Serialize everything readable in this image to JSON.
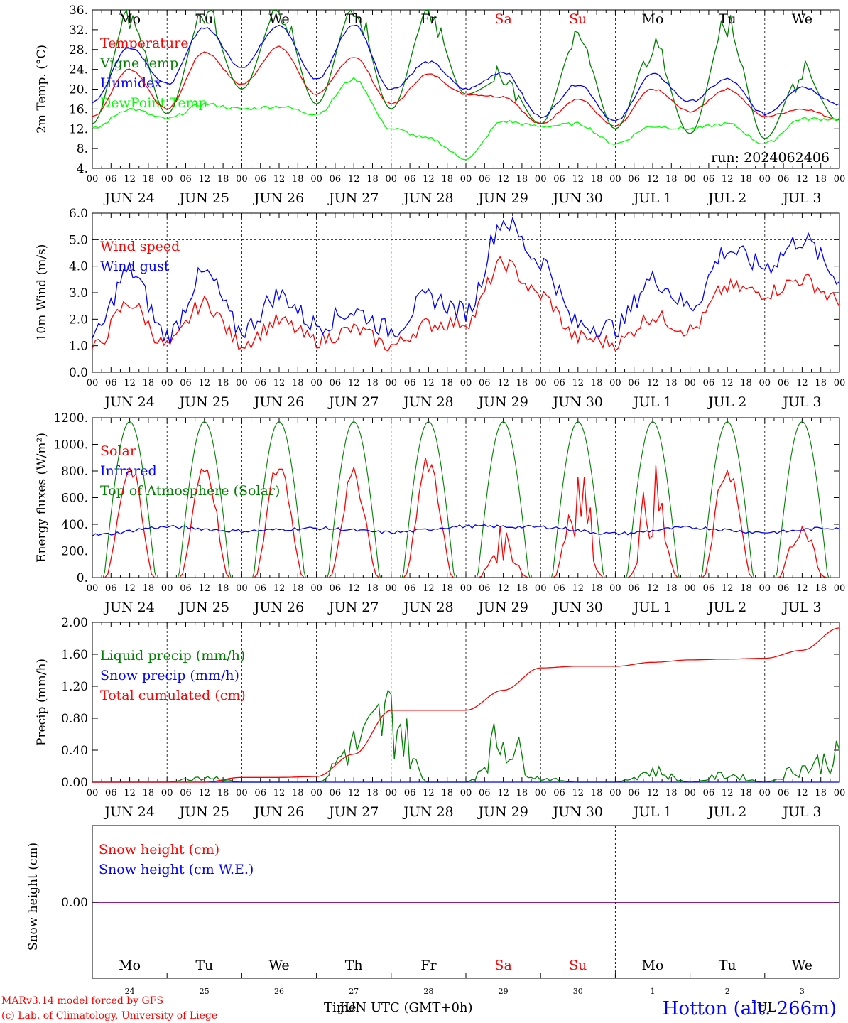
{
  "colors": {
    "red": "#ff0000",
    "green": "#008000",
    "blue": "#0000ff",
    "lightgreen": "#00ff00",
    "purple": "#800080"
  },
  "run_label": "run: 2024062406",
  "time_ticks": [
    "00",
    "06",
    "12",
    "18",
    "00",
    "06",
    "12",
    "18",
    "00",
    "06",
    "12",
    "18",
    "00",
    "06",
    "12",
    "18",
    "00",
    "06",
    "12",
    "18",
    "00",
    "06",
    "12",
    "18",
    "00",
    "06",
    "12",
    "18",
    "00",
    "06",
    "12",
    "18",
    "00",
    "06",
    "12",
    "18",
    "00",
    "06",
    "12",
    "18",
    "00"
  ],
  "date_labels": [
    "JUN 24",
    "JUN 25",
    "JUN 26",
    "JUN 27",
    "JUN 28",
    "JUN 29",
    "JUN 30",
    "JUL  1",
    "JUL  2",
    "JUL  3"
  ],
  "weekdays": [
    {
      "label": "Mo",
      "color": "#000000"
    },
    {
      "label": "Tu",
      "color": "#000000"
    },
    {
      "label": "We",
      "color": "#000000"
    },
    {
      "label": "Th",
      "color": "#000000"
    },
    {
      "label": "Fr",
      "color": "#000000"
    },
    {
      "label": "Sa",
      "color": "#ff0000"
    },
    {
      "label": "Su",
      "color": "#ff0000"
    },
    {
      "label": "Mo",
      "color": "#000000"
    },
    {
      "label": "Tu",
      "color": "#000000"
    },
    {
      "label": "We",
      "color": "#000000"
    }
  ],
  "snow_day_numbers": [
    "24",
    "25",
    "26",
    "27",
    "28",
    "29",
    "30",
    "1",
    "2",
    "3"
  ],
  "footer": {
    "credit_line1": "MARv3.14 model forced by GFS",
    "credit_line2": "(c) Lab. of Climatology, University of Liege",
    "xaxis_title": "Time",
    "xaxis_title2": "JUN UTC (GMT+0h)",
    "month_overlay": "JUL",
    "station": "Hotton (alt. 266m)"
  },
  "chart_data": [
    {
      "type": "line",
      "ylabel": "2m Temp. (°C)",
      "ylim": [
        4,
        36
      ],
      "yticks": [
        "36.",
        "32.",
        "28.",
        "24.",
        "20.",
        "16.",
        "12.",
        "8.",
        "4."
      ],
      "x_hours": [
        0,
        12,
        24,
        36,
        48,
        60,
        72,
        84,
        96,
        108,
        120,
        132,
        144,
        156,
        168,
        180,
        192,
        204,
        216,
        228,
        240
      ],
      "legend_position": "left",
      "series": [
        {
          "name": "Temperature",
          "color": "#ff0000",
          "values": [
            14.5,
            24,
            16,
            27.5,
            21,
            28.5,
            19,
            26.5,
            17,
            23,
            19,
            18.5,
            13,
            18,
            12.5,
            20,
            15.5,
            20,
            14.5,
            16,
            14
          ]
        },
        {
          "name": "Vigne temp",
          "color": "#008000",
          "values": [
            13,
            35,
            15,
            35,
            20,
            36,
            17,
            36,
            16,
            35,
            19,
            22,
            13,
            30,
            12,
            28,
            11,
            33,
            10,
            23,
            13.5
          ]
        },
        {
          "name": "Humidex",
          "color": "#0000ff",
          "values": [
            17.5,
            28.5,
            21,
            32.5,
            24.5,
            33,
            22,
            33,
            20,
            25.5,
            20,
            23.5,
            14.5,
            21,
            13.5,
            23,
            17.5,
            22,
            15,
            20.5,
            17
          ]
        },
        {
          "name": "DewPoint Temp",
          "color": "#00ff00",
          "values": [
            12,
            16,
            14,
            17,
            16,
            16.5,
            15,
            22,
            12,
            10,
            6,
            13.5,
            12.5,
            13,
            9,
            12.5,
            12,
            13,
            9,
            14,
            14
          ]
        }
      ]
    },
    {
      "type": "line",
      "ylabel": "10m Wind (m/s)",
      "ylim": [
        0,
        6
      ],
      "yticks": [
        "6.0",
        "5.0",
        "4.0",
        "3.0",
        "2.0",
        "1.0",
        "0.0"
      ],
      "reference_line": 5,
      "x_hours": [
        0,
        12,
        24,
        36,
        48,
        60,
        72,
        84,
        96,
        108,
        120,
        132,
        144,
        156,
        168,
        180,
        192,
        204,
        216,
        228,
        240
      ],
      "legend_position": "left",
      "series": [
        {
          "name": "Wind speed",
          "color": "#ff0000",
          "values": [
            0.9,
            2.6,
            1.0,
            2.6,
            1.1,
            1.9,
            1.2,
            1.6,
            1.0,
            1.8,
            1.9,
            4.1,
            2.9,
            1.3,
            1.1,
            2.1,
            1.6,
            3.2,
            3.0,
            3.5,
            2.7
          ]
        },
        {
          "name": "Wind gust",
          "color": "#0000ff",
          "values": [
            1.3,
            3.8,
            1.4,
            3.7,
            1.6,
            2.9,
            1.8,
            2.3,
            1.6,
            2.8,
            2.3,
            5.7,
            4.2,
            1.8,
            1.7,
            3.5,
            2.5,
            4.6,
            4.0,
            5.0,
            3.6
          ]
        }
      ]
    },
    {
      "type": "line",
      "ylabel": "Energy fluxes (W/m²)",
      "ylim": [
        0,
        1200
      ],
      "yticks": [
        "1200.",
        "1000.",
        "800.",
        "600.",
        "400.",
        "200.",
        "0."
      ],
      "legend_position": "left",
      "series": [
        {
          "name": "Solar",
          "color": "#ff0000",
          "daily_peak": [
            850,
            880,
            880,
            790,
            900,
            350,
            880,
            780,
            860,
            400
          ]
        },
        {
          "name": "Infrared",
          "color": "#0000ff",
          "values": [
            320,
            380,
            350,
            370,
            340,
            385,
            380,
            330,
            375,
            340,
            375
          ]
        },
        {
          "name": "Top of Atmosphere (Solar)",
          "color": "#008000",
          "daily_peak": [
            1170,
            1170,
            1170,
            1170,
            1170,
            1170,
            1170,
            1170,
            1170,
            1170
          ]
        }
      ]
    },
    {
      "type": "line",
      "ylabel": "Precip (mm/h)",
      "ylim": [
        0,
        2
      ],
      "yticks": [
        "2.00",
        "1.60",
        "1.20",
        "0.80",
        "0.40",
        "0.00"
      ],
      "x_hours": [
        0,
        12,
        24,
        36,
        48,
        60,
        72,
        84,
        96,
        108,
        120,
        132,
        144,
        156,
        168,
        180,
        192,
        204,
        216,
        228,
        240
      ],
      "legend_position": "left",
      "series": [
        {
          "name": "Liquid precip (mm/h)",
          "color": "#008000",
          "values": [
            0,
            0,
            0,
            0.08,
            0,
            0,
            0,
            0.5,
            0.9,
            0,
            0,
            0.6,
            0.05,
            0,
            0,
            0.15,
            0,
            0.1,
            0,
            0.2,
            0.35
          ]
        },
        {
          "name": "Snow precip (mm/h)",
          "color": "#0000ff",
          "values": [
            0,
            0,
            0,
            0,
            0,
            0,
            0,
            0,
            0,
            0,
            0,
            0,
            0,
            0,
            0,
            0,
            0,
            0,
            0,
            0,
            0
          ]
        },
        {
          "name": "Total cumulated (cm)",
          "color": "#ff0000",
          "values": [
            0,
            0,
            0,
            0,
            0.06,
            0.06,
            0.07,
            0.35,
            0.9,
            0.9,
            0.9,
            1.15,
            1.43,
            1.45,
            1.45,
            1.5,
            1.53,
            1.54,
            1.55,
            1.65,
            1.93
          ]
        }
      ]
    },
    {
      "type": "line",
      "ylabel": "Snow height (cm)",
      "yticks": [
        "0.00"
      ],
      "legend_position": "left",
      "series": [
        {
          "name": "Snow height (cm)",
          "color": "#ff0000",
          "values": [
            0,
            0
          ]
        },
        {
          "name": "Snow height (cm W.E.)",
          "color": "#0000ff",
          "values": [
            0,
            0
          ]
        }
      ]
    }
  ]
}
